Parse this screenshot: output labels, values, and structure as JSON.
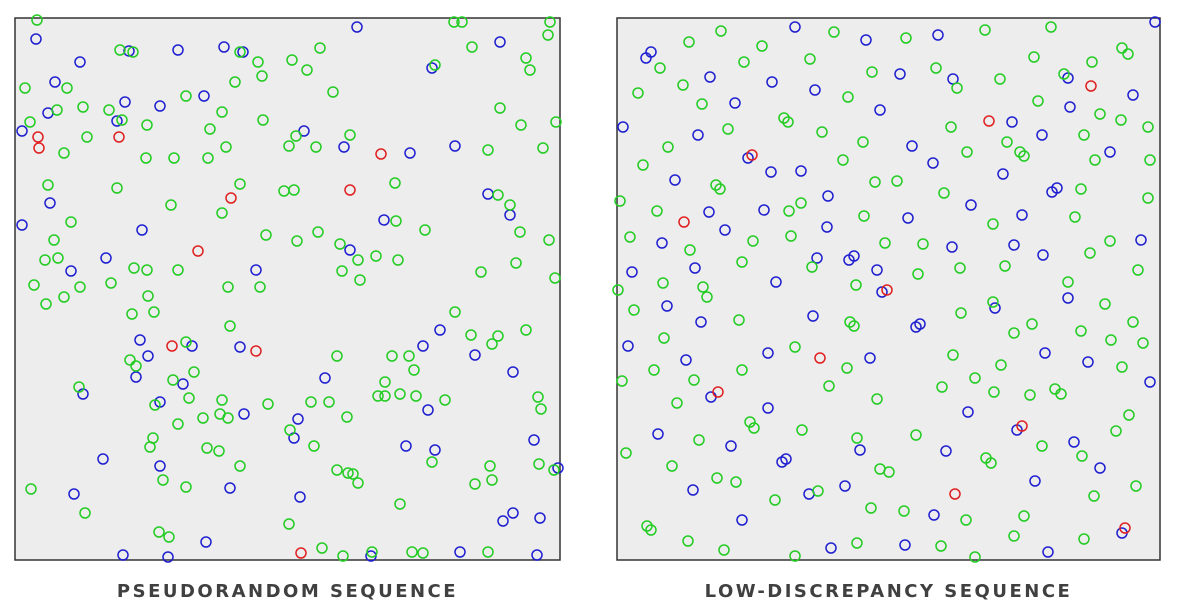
{
  "chart_data": [
    {
      "type": "scatter",
      "title": "PSEUDORANDOM SEQUENCE",
      "xlim": [
        15,
        560
      ],
      "ylim": [
        560,
        18
      ],
      "series": [
        {
          "color": "#1f1fd0",
          "x": [
            36,
            80,
            55,
            48,
            22,
            129,
            178,
            224,
            243,
            357,
            500,
            432,
            125,
            160,
            204,
            117,
            304,
            344,
            410,
            455,
            488,
            50,
            22,
            142,
            106,
            71,
            256,
            350,
            384,
            510,
            440,
            423,
            140,
            148,
            136,
            192,
            240,
            83,
            160,
            183,
            244,
            298,
            294,
            325,
            428,
            406,
            435,
            513,
            534,
            558,
            103,
            160,
            74,
            230,
            300,
            513,
            540,
            503,
            123,
            168,
            206,
            371,
            460,
            537,
            475
          ],
          "y": [
            39,
            62,
            82,
            113,
            131,
            51,
            50,
            47,
            52,
            27,
            42,
            68,
            102,
            106,
            96,
            121,
            131,
            147,
            153,
            146,
            194,
            203,
            225,
            230,
            258,
            271,
            270,
            250,
            220,
            215,
            330,
            346,
            340,
            356,
            377,
            346,
            347,
            394,
            402,
            384,
            414,
            419,
            438,
            378,
            410,
            446,
            450,
            372,
            440,
            468,
            459,
            466,
            494,
            488,
            497,
            513,
            518,
            521,
            555,
            557,
            542,
            556,
            552,
            555,
            355
          ]
        },
        {
          "color": "#22cc22",
          "x": [
            37,
            120,
            133,
            240,
            258,
            320,
            292,
            307,
            454,
            462,
            550,
            548,
            526,
            530,
            472,
            435,
            25,
            67,
            83,
            109,
            57,
            30,
            186,
            262,
            235,
            333,
            263,
            222,
            147,
            210,
            122,
            87,
            64,
            146,
            174,
            208,
            226,
            289,
            296,
            316,
            350,
            488,
            500,
            521,
            543,
            556,
            48,
            117,
            171,
            222,
            240,
            284,
            294,
            395,
            498,
            510,
            71,
            54,
            45,
            58,
            34,
            134,
            147,
            178,
            266,
            297,
            318,
            340,
            358,
            376,
            396,
            398,
            425,
            520,
            549,
            555,
            516,
            481,
            46,
            64,
            80,
            111,
            228,
            260,
            342,
            360,
            148,
            154,
            132,
            130,
            186,
            194,
            230,
            337,
            392,
            409,
            385,
            400,
            414,
            455,
            471,
            492,
            498,
            526,
            79,
            136,
            173,
            189,
            155,
            153,
            150,
            222,
            178,
            203,
            220,
            207,
            228,
            268,
            290,
            311,
            329,
            347,
            378,
            385,
            416,
            445,
            538,
            541,
            314,
            219,
            186,
            163,
            240,
            348,
            337,
            353,
            358,
            432,
            490,
            475,
            492,
            539,
            554,
            31,
            85,
            400,
            289,
            159,
            169,
            322,
            343,
            372,
            412,
            423,
            488
          ],
          "y": [
            20,
            50,
            52,
            52,
            62,
            48,
            60,
            70,
            22,
            22,
            22,
            35,
            58,
            70,
            47,
            65,
            88,
            88,
            107,
            110,
            110,
            122,
            96,
            76,
            82,
            92,
            120,
            112,
            125,
            129,
            120,
            137,
            153,
            158,
            158,
            158,
            147,
            146,
            136,
            147,
            135,
            150,
            108,
            125,
            148,
            122,
            185,
            188,
            205,
            213,
            184,
            191,
            190,
            183,
            195,
            205,
            222,
            240,
            260,
            258,
            285,
            268,
            270,
            270,
            235,
            241,
            232,
            244,
            260,
            256,
            221,
            260,
            230,
            232,
            240,
            278,
            263,
            272,
            304,
            297,
            287,
            283,
            287,
            287,
            271,
            280,
            296,
            312,
            314,
            360,
            342,
            372,
            326,
            356,
            356,
            356,
            382,
            394,
            370,
            312,
            335,
            344,
            336,
            330,
            387,
            366,
            380,
            398,
            405,
            438,
            447,
            400,
            424,
            418,
            414,
            448,
            418,
            404,
            430,
            402,
            402,
            417,
            396,
            396,
            396,
            400,
            397,
            409,
            446,
            451,
            487,
            480,
            466,
            473,
            470,
            474,
            483,
            462,
            466,
            484,
            480,
            464,
            470,
            489,
            513,
            504,
            524,
            532,
            537,
            548,
            556,
            552,
            552,
            553,
            552
          ]
        },
        {
          "color": "#e02020",
          "x": [
            38,
            39,
            119,
            381,
            350,
            231,
            198,
            172,
            256,
            301
          ],
          "y": [
            137,
            148,
            137,
            154,
            190,
            198,
            251,
            346,
            351,
            553
          ]
        }
      ]
    },
    {
      "type": "scatter",
      "title": "LOW-DISCREPANCY SEQUENCE",
      "xlim": [
        617,
        1160
      ],
      "ylim": [
        560,
        18
      ],
      "series": [
        {
          "color": "#1f1fd0",
          "x": [
            651,
            646,
            795,
            866,
            938,
            1155,
            710,
            772,
            735,
            815,
            900,
            953,
            1068,
            1133,
            880,
            1012,
            1070,
            1042,
            623,
            698,
            748,
            933,
            912,
            771,
            801,
            675,
            828,
            1003,
            1057,
            1052,
            1110,
            709,
            764,
            827,
            908,
            971,
            1022,
            662,
            725,
            817,
            849,
            854,
            952,
            1014,
            1141,
            632,
            695,
            776,
            877,
            1043,
            1068,
            667,
            701,
            813,
            882,
            916,
            920,
            995,
            628,
            686,
            768,
            870,
            1045,
            1088,
            1150,
            711,
            768,
            658,
            731,
            782,
            786,
            860,
            968,
            1017,
            1074,
            946,
            693,
            809,
            845,
            934,
            1035,
            1100,
            742,
            831,
            905,
            1048,
            1122
          ],
          "y": [
            52,
            58,
            27,
            40,
            35,
            22,
            77,
            82,
            103,
            90,
            74,
            79,
            78,
            95,
            110,
            122,
            107,
            135,
            127,
            135,
            158,
            163,
            146,
            172,
            171,
            180,
            196,
            174,
            188,
            192,
            152,
            212,
            210,
            227,
            218,
            205,
            215,
            243,
            230,
            258,
            260,
            256,
            247,
            245,
            240,
            272,
            268,
            282,
            270,
            255,
            298,
            306,
            322,
            316,
            292,
            327,
            324,
            308,
            346,
            360,
            353,
            358,
            353,
            362,
            382,
            397,
            408,
            434,
            446,
            462,
            459,
            450,
            412,
            430,
            442,
            451,
            490,
            494,
            486,
            515,
            481,
            468,
            520,
            548,
            545,
            552,
            533
          ]
        },
        {
          "color": "#22cc22",
          "x": [
            689,
            721,
            834,
            906,
            985,
            1051,
            1122,
            1128,
            660,
            744,
            762,
            810,
            872,
            936,
            1000,
            1034,
            1064,
            1092,
            638,
            683,
            702,
            784,
            788,
            848,
            957,
            1038,
            1100,
            1148,
            668,
            728,
            822,
            951,
            1007,
            1084,
            1121,
            643,
            716,
            720,
            843,
            863,
            967,
            1020,
            1024,
            1095,
            1150,
            620,
            657,
            789,
            801,
            864,
            875,
            897,
            944,
            1081,
            1148,
            630,
            690,
            742,
            753,
            791,
            885,
            923,
            993,
            1075,
            1090,
            1110,
            618,
            663,
            703,
            707,
            812,
            856,
            918,
            960,
            1005,
            1068,
            1138,
            634,
            664,
            739,
            850,
            854,
            961,
            993,
            1032,
            1105,
            1081,
            1133,
            622,
            654,
            694,
            742,
            795,
            847,
            953,
            975,
            1014,
            1001,
            1111,
            1143,
            677,
            750,
            754,
            829,
            877,
            942,
            1055,
            1061,
            1122,
            626,
            699,
            802,
            857,
            916,
            994,
            1030,
            1042,
            1129,
            1116,
            672,
            717,
            880,
            889,
            986,
            991,
            1082,
            1136,
            736,
            775,
            818,
            871,
            904,
            966,
            1024,
            1094,
            647,
            651,
            688,
            724,
            795,
            857,
            941,
            975,
            1014,
            1084
          ],
          "y": [
            42,
            31,
            32,
            38,
            30,
            27,
            48,
            54,
            68,
            62,
            46,
            59,
            72,
            68,
            79,
            57,
            74,
            62,
            93,
            85,
            104,
            118,
            122,
            97,
            88,
            101,
            114,
            127,
            147,
            129,
            132,
            127,
            142,
            135,
            120,
            165,
            185,
            189,
            160,
            142,
            152,
            152,
            156,
            160,
            160,
            201,
            211,
            211,
            203,
            216,
            182,
            181,
            193,
            189,
            198,
            237,
            250,
            262,
            241,
            236,
            243,
            244,
            224,
            217,
            253,
            241,
            290,
            283,
            287,
            297,
            267,
            285,
            274,
            268,
            266,
            282,
            270,
            310,
            338,
            320,
            322,
            326,
            313,
            302,
            324,
            304,
            331,
            322,
            381,
            370,
            380,
            370,
            347,
            368,
            355,
            378,
            333,
            365,
            340,
            343,
            403,
            422,
            428,
            386,
            399,
            387,
            389,
            394,
            367,
            453,
            440,
            430,
            438,
            435,
            392,
            395,
            446,
            415,
            431,
            466,
            478,
            469,
            472,
            458,
            463,
            456,
            486,
            482,
            500,
            491,
            508,
            511,
            520,
            516,
            496,
            526,
            530,
            541,
            550,
            556,
            543,
            546,
            557,
            536,
            539
          ]
        },
        {
          "color": "#e02020",
          "x": [
            752,
            684,
            989,
            1091,
            820,
            718,
            887,
            1022,
            955,
            1125
          ],
          "y": [
            155,
            222,
            121,
            86,
            358,
            392,
            290,
            426,
            494,
            528
          ]
        }
      ]
    }
  ]
}
